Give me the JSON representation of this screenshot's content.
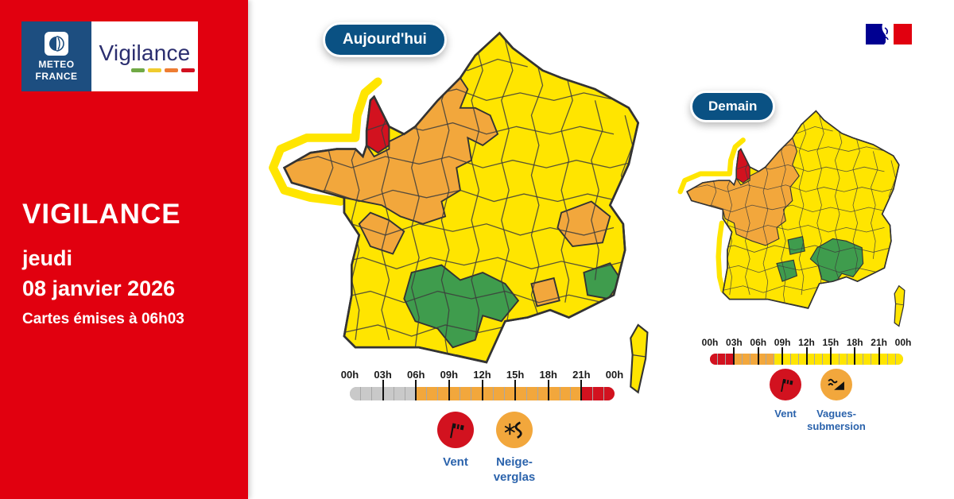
{
  "brand": {
    "meteo_logo_line1": "METEO",
    "meteo_logo_line2": "FRANCE",
    "vigilance_wordmark": "Vigilance",
    "vigilance_bars": [
      "#70A945",
      "#F0CC2E",
      "#EE7D32",
      "#D2101F"
    ]
  },
  "sidebar": {
    "title": "VIGILANCE",
    "weekday": "jeudi",
    "date": "08 janvier 2026",
    "issued_note": "Cartes émises à 06h03"
  },
  "colors": {
    "yellow": "#FFE500",
    "orange": "#F2A73C",
    "red": "#D2121F",
    "green": "#3F9C4D",
    "gray": "#C9C9C9",
    "sidebar": "#E1000F",
    "badge": "#0A5183",
    "label": "#2B63AC",
    "navy": "#2B2E6F",
    "mfblue": "#1D4E80",
    "govblue": "#000091",
    "govred": "#E1000F"
  },
  "maps": [
    {
      "id": "today",
      "badge_label": "Aujourd'hui",
      "timeline": {
        "tick_labels": [
          "00h",
          "03h",
          "06h",
          "09h",
          "12h",
          "15h",
          "18h",
          "21h",
          "00h"
        ],
        "hours": 24,
        "segments": [
          {
            "start": 0,
            "end": 6,
            "level": "gray"
          },
          {
            "start": 6,
            "end": 21,
            "level": "orange"
          },
          {
            "start": 21,
            "end": 24,
            "level": "red"
          }
        ]
      },
      "legend": [
        {
          "label": "Vent",
          "icon": "windsock-icon",
          "level": "red"
        },
        {
          "label": "Neige-verglas",
          "icon": "snow-ice-icon",
          "level": "orange"
        }
      ],
      "zones": {
        "base_level": "yellow",
        "alerts": [
          {
            "area": "northwest",
            "level": "orange"
          },
          {
            "area": "charente-maritime",
            "level": "orange"
          },
          {
            "area": "savoie",
            "level": "orange"
          },
          {
            "area": "vaucluse",
            "level": "orange"
          },
          {
            "area": "southwest",
            "level": "green"
          },
          {
            "area": "southeast-small",
            "level": "green"
          },
          {
            "area": "manche",
            "level": "red"
          }
        ],
        "coastal_bands": [
          "cotentin-brittany"
        ]
      }
    },
    {
      "id": "tomorrow",
      "badge_label": "Demain",
      "timeline": {
        "tick_labels": [
          "00h",
          "03h",
          "06h",
          "09h",
          "12h",
          "15h",
          "18h",
          "21h",
          "00h"
        ],
        "hours": 24,
        "segments": [
          {
            "start": 0,
            "end": 3,
            "level": "red"
          },
          {
            "start": 3,
            "end": 8,
            "level": "orange"
          },
          {
            "start": 8,
            "end": 24,
            "level": "yellow"
          }
        ]
      },
      "legend": [
        {
          "label": "Vent",
          "icon": "windsock-icon",
          "level": "red"
        },
        {
          "label": "Vagues-submersion",
          "icon": "waves-submersion-icon",
          "level": "orange"
        }
      ],
      "zones": {
        "base_level": "yellow",
        "alerts": [
          {
            "area": "northwest-extended",
            "level": "orange"
          },
          {
            "area": "south-central",
            "level": "green"
          },
          {
            "area": "tarn",
            "level": "green"
          },
          {
            "area": "aveyron",
            "level": "green"
          },
          {
            "area": "manche",
            "level": "red"
          }
        ],
        "coastal_bands": [
          "cotentin-north",
          "west-coast"
        ]
      }
    }
  ]
}
